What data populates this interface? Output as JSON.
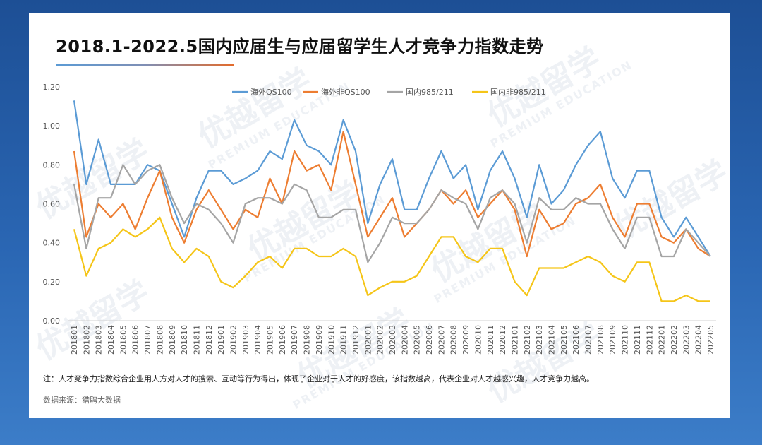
{
  "chart_data": {
    "type": "line",
    "title": "2018.1-2022.5国内应届生与应届留学生人才竞争力指数走势",
    "ylim": [
      0,
      1.2
    ],
    "yticks": [
      "0.00",
      "0.20",
      "0.40",
      "0.60",
      "0.80",
      "1.00",
      "1.20"
    ],
    "x": [
      "201801",
      "201802",
      "201803",
      "201804",
      "201805",
      "201806",
      "201807",
      "201808",
      "201809",
      "201810",
      "201811",
      "201812",
      "201901",
      "201902",
      "201903",
      "201904",
      "201905",
      "201906",
      "201907",
      "201908",
      "201909",
      "201910",
      "201911",
      "201912",
      "202001",
      "202002",
      "202003",
      "202004",
      "202005",
      "202006",
      "202007",
      "202008",
      "202009",
      "202010",
      "202011",
      "202012",
      "202101",
      "202102",
      "202103",
      "202104",
      "202105",
      "202106",
      "202107",
      "202108",
      "202109",
      "202110",
      "202111",
      "202112",
      "202201",
      "202202",
      "202203",
      "202204",
      "202205"
    ],
    "series": [
      {
        "name": "海外QS100",
        "color": "#5b9bd5",
        "values": [
          1.13,
          0.7,
          0.93,
          0.7,
          0.7,
          0.7,
          0.8,
          0.77,
          0.6,
          0.43,
          0.63,
          0.77,
          0.77,
          0.7,
          0.73,
          0.77,
          0.87,
          0.83,
          1.03,
          0.9,
          0.87,
          0.8,
          1.03,
          0.87,
          0.5,
          0.7,
          0.83,
          0.57,
          0.57,
          0.73,
          0.87,
          0.73,
          0.8,
          0.57,
          0.77,
          0.87,
          0.73,
          0.53,
          0.8,
          0.6,
          0.67,
          0.8,
          0.9,
          0.97,
          0.73,
          0.63,
          0.77,
          0.77,
          0.53,
          0.43,
          0.53,
          0.43,
          0.33
        ]
      },
      {
        "name": "海外非QS100",
        "color": "#ed7d31",
        "values": [
          0.87,
          0.43,
          0.6,
          0.53,
          0.6,
          0.47,
          0.63,
          0.77,
          0.53,
          0.4,
          0.57,
          0.67,
          0.57,
          0.47,
          0.57,
          0.53,
          0.73,
          0.6,
          0.87,
          0.77,
          0.8,
          0.67,
          0.97,
          0.7,
          0.43,
          0.53,
          0.63,
          0.43,
          0.5,
          0.57,
          0.67,
          0.6,
          0.67,
          0.53,
          0.6,
          0.67,
          0.57,
          0.33,
          0.57,
          0.47,
          0.5,
          0.6,
          0.63,
          0.7,
          0.53,
          0.43,
          0.6,
          0.6,
          0.43,
          0.4,
          0.47,
          0.37,
          0.33
        ]
      },
      {
        "name": "国内985/211",
        "color": "#a5a5a5",
        "values": [
          0.7,
          0.37,
          0.63,
          0.63,
          0.8,
          0.7,
          0.77,
          0.8,
          0.63,
          0.5,
          0.6,
          0.57,
          0.5,
          0.4,
          0.6,
          0.63,
          0.63,
          0.6,
          0.7,
          0.67,
          0.53,
          0.53,
          0.57,
          0.57,
          0.3,
          0.4,
          0.53,
          0.5,
          0.5,
          0.57,
          0.67,
          0.63,
          0.6,
          0.47,
          0.63,
          0.67,
          0.6,
          0.4,
          0.63,
          0.57,
          0.57,
          0.63,
          0.6,
          0.6,
          0.47,
          0.37,
          0.53,
          0.53,
          0.33,
          0.33,
          0.47,
          0.4,
          0.33
        ]
      },
      {
        "name": "国内非985/211",
        "color": "#f5c518",
        "values": [
          0.47,
          0.23,
          0.37,
          0.4,
          0.47,
          0.43,
          0.47,
          0.53,
          0.37,
          0.3,
          0.37,
          0.33,
          0.2,
          0.17,
          0.23,
          0.3,
          0.33,
          0.27,
          0.37,
          0.37,
          0.33,
          0.33,
          0.37,
          0.33,
          0.13,
          0.17,
          0.2,
          0.2,
          0.23,
          0.33,
          0.43,
          0.43,
          0.33,
          0.3,
          0.37,
          0.37,
          0.2,
          0.13,
          0.27,
          0.27,
          0.27,
          0.3,
          0.33,
          0.3,
          0.23,
          0.2,
          0.3,
          0.3,
          0.1,
          0.1,
          0.13,
          0.1,
          0.1
        ]
      }
    ],
    "legend": "top-left",
    "grid": false
  },
  "note": "注：人才竞争力指数综合企业用人方对人才的搜索、互动等行为得出，体现了企业对于人才的好感度，该指数越高，代表企业对人才越感兴趣，人才竞争力越高。",
  "source": "数据来源：猎聘大数据",
  "watermark": {
    "brand": "优越留学",
    "sub": "PREMIUM EDUCATION"
  }
}
